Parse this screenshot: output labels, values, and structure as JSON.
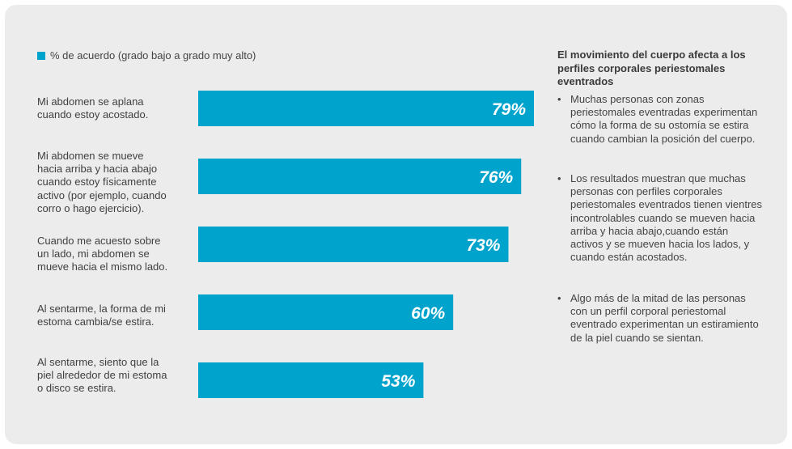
{
  "chart_data": {
    "type": "bar",
    "orientation": "horizontal",
    "legend": "% de acuerdo (grado bajo a grado muy alto)",
    "legend_position": "top-left",
    "bar_color": "#00a3cc",
    "xlim": [
      0,
      79
    ],
    "categories": [
      "Mi abdomen se aplana\ncuando estoy acostado.",
      "Mi abdomen se mueve\nhacia arriba y hacia abajo\ncuando estoy físicamente\nactivo (por ejemplo, cuando\ncorro o hago ejercicio).",
      "Cuando me acuesto sobre\nun lado, mi abdomen se\nmueve hacia el mismo lado.",
      "Al sentarme, la forma de mi\nestoma cambia/se estira.",
      "Al sentarme, siento que la\npiel alrededor de mi estoma\no disco se estira."
    ],
    "values": [
      79,
      76,
      73,
      60,
      53
    ],
    "value_labels": [
      "79%",
      "76%",
      "73%",
      "60%",
      "53%"
    ]
  },
  "side": {
    "title": "El movimiento del cuerpo afecta a los perfiles corporales periestomales eventrados",
    "bullet_char": "•",
    "bullets": [
      "Muchas personas con zonas periestomales eventradas experimentan cómo la forma de su ostomía se estira cuando cambian la posición del cuerpo.",
      "Los resultados muestran que muchas personas con perfiles corporales periestomales eventrados tienen vientres incontrolables cuando se mueven hacia arriba y hacia abajo,cuando están activos y se mueven hacia los lados, y cuando están acostados.",
      "Algo más de la mitad de las personas con un perfil corporal periestomal eventrado experimentan un estiramiento de la piel cuando se sientan."
    ]
  }
}
